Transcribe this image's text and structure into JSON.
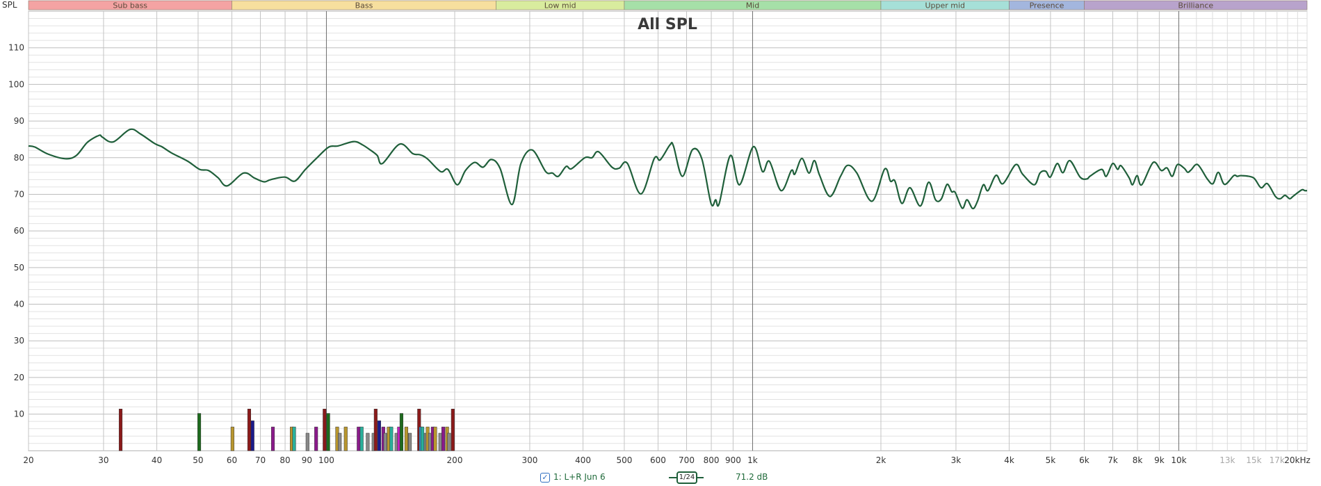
{
  "chart_data": {
    "type": "line",
    "title": "All SPL",
    "ylabel": "SPL",
    "xlabel": "",
    "x_scale": "log",
    "xlim": [
      20,
      20000
    ],
    "ylim": [
      0,
      120
    ],
    "grid": true,
    "y_ticks": [
      "10",
      "20",
      "30",
      "40",
      "50",
      "60",
      "70",
      "80",
      "90",
      "100",
      "110"
    ],
    "x_ticks": [
      {
        "f": 20,
        "label": "20"
      },
      {
        "f": 30,
        "label": "30"
      },
      {
        "f": 40,
        "label": "40"
      },
      {
        "f": 50,
        "label": "50"
      },
      {
        "f": 60,
        "label": "60"
      },
      {
        "f": 70,
        "label": "70"
      },
      {
        "f": 80,
        "label": "80"
      },
      {
        "f": 90,
        "label": "90"
      },
      {
        "f": 100,
        "label": "100"
      },
      {
        "f": 200,
        "label": "200"
      },
      {
        "f": 300,
        "label": "300"
      },
      {
        "f": 400,
        "label": "400"
      },
      {
        "f": 500,
        "label": "500"
      },
      {
        "f": 600,
        "label": "600"
      },
      {
        "f": 700,
        "label": "700"
      },
      {
        "f": 800,
        "label": "800"
      },
      {
        "f": 900,
        "label": "900"
      },
      {
        "f": 1000,
        "label": "1k"
      },
      {
        "f": 2000,
        "label": "2k"
      },
      {
        "f": 3000,
        "label": "3k"
      },
      {
        "f": 4000,
        "label": "4k"
      },
      {
        "f": 5000,
        "label": "5k"
      },
      {
        "f": 6000,
        "label": "6k"
      },
      {
        "f": 7000,
        "label": "7k"
      },
      {
        "f": 8000,
        "label": "8k"
      },
      {
        "f": 9000,
        "label": "9k"
      },
      {
        "f": 10000,
        "label": "10k"
      },
      {
        "f": 13000,
        "label": "13k",
        "dim": true
      },
      {
        "f": 15000,
        "label": "15k",
        "dim": true
      },
      {
        "f": 17000,
        "label": "17k",
        "dim": true
      },
      {
        "f": 20000,
        "label": "20kHz"
      }
    ],
    "bands": [
      {
        "label": "Sub bass",
        "from": 20,
        "to": 60,
        "color": "#f4a3a3"
      },
      {
        "label": "Bass",
        "from": 60,
        "to": 250,
        "color": "#f7df9e"
      },
      {
        "label": "Low mid",
        "from": 250,
        "to": 500,
        "color": "#d9ec9e"
      },
      {
        "label": "Mid",
        "from": 500,
        "to": 2000,
        "color": "#a6e0a8"
      },
      {
        "label": "Upper mid",
        "from": 2000,
        "to": 4000,
        "color": "#a6e0d8"
      },
      {
        "label": "Presence",
        "from": 4000,
        "to": 6000,
        "color": "#a3b6de"
      },
      {
        "label": "Brilliance",
        "from": 6000,
        "to": 20000,
        "color": "#b8a3cc"
      }
    ],
    "series": [
      {
        "name": "1: L+R Jun 6",
        "color": "#1f5f3a",
        "points": [
          [
            20,
            83.2
          ],
          [
            20.7,
            82.9
          ],
          [
            22.2,
            81
          ],
          [
            24.4,
            79.7
          ],
          [
            25.9,
            80.6
          ],
          [
            27.5,
            84.2
          ],
          [
            29.3,
            86.1
          ],
          [
            29.8,
            85.6
          ],
          [
            31.6,
            84.3
          ],
          [
            34.6,
            87.7
          ],
          [
            36.7,
            86.4
          ],
          [
            39.6,
            83.8
          ],
          [
            41.1,
            83
          ],
          [
            43.3,
            81.3
          ],
          [
            47.3,
            79
          ],
          [
            50.4,
            76.8
          ],
          [
            52.9,
            76.5
          ],
          [
            55.7,
            74.5
          ],
          [
            58.5,
            72.3
          ],
          [
            63.9,
            75.8
          ],
          [
            67.9,
            74.4
          ],
          [
            71.4,
            73.4
          ],
          [
            74,
            74
          ],
          [
            79.9,
            74.7
          ],
          [
            84.3,
            73.6
          ],
          [
            89.3,
            76.8
          ],
          [
            95.1,
            80
          ],
          [
            101.3,
            82.9
          ],
          [
            106.5,
            83.2
          ],
          [
            115.9,
            84.4
          ],
          [
            121.5,
            83.5
          ],
          [
            126.7,
            82.1
          ],
          [
            131.6,
            80.6
          ],
          [
            135.3,
            78.4
          ],
          [
            148.6,
            83.7
          ],
          [
            159.5,
            81.1
          ],
          [
            165.8,
            80.8
          ],
          [
            172.5,
            79.7
          ],
          [
            185.4,
            76.2
          ],
          [
            192.8,
            76.8
          ],
          [
            202.8,
            72.6
          ],
          [
            212,
            76.5
          ],
          [
            222.8,
            78.7
          ],
          [
            233,
            77.4
          ],
          [
            243.6,
            79.5
          ],
          [
            255.5,
            77.1
          ],
          [
            272.6,
            67.2
          ],
          [
            286,
            78.4
          ],
          [
            304,
            82.1
          ],
          [
            327,
            76.2
          ],
          [
            339,
            75.8
          ],
          [
            350,
            74.9
          ],
          [
            365,
            77.6
          ],
          [
            376,
            77
          ],
          [
            404,
            80
          ],
          [
            420,
            80
          ],
          [
            435,
            81.6
          ],
          [
            468,
            77.4
          ],
          [
            486,
            77.1
          ],
          [
            508,
            78.5
          ],
          [
            547,
            70.1
          ],
          [
            588,
            79.8
          ],
          [
            607,
            79.4
          ],
          [
            640,
            83.5
          ],
          [
            652,
            83.2
          ],
          [
            684,
            74.9
          ],
          [
            723,
            82.2
          ],
          [
            760,
            79.7
          ],
          [
            799,
            67.5
          ],
          [
            819,
            68.5
          ],
          [
            835,
            67.5
          ],
          [
            887,
            80.6
          ],
          [
            932,
            72.6
          ],
          [
            1004,
            83
          ],
          [
            1055,
            76.2
          ],
          [
            1095,
            79
          ],
          [
            1166,
            71
          ],
          [
            1233,
            76.5
          ],
          [
            1256,
            75.5
          ],
          [
            1305,
            79.8
          ],
          [
            1356,
            75.8
          ],
          [
            1396,
            79.2
          ],
          [
            1436,
            75.2
          ],
          [
            1519,
            69.4
          ],
          [
            1608,
            74.9
          ],
          [
            1671,
            77.9
          ],
          [
            1756,
            75.8
          ],
          [
            1905,
            68.1
          ],
          [
            2041,
            76.9
          ],
          [
            2106,
            73.6
          ],
          [
            2158,
            73.6
          ],
          [
            2240,
            67.5
          ],
          [
            2340,
            71.8
          ],
          [
            2475,
            66.8
          ],
          [
            2588,
            73.3
          ],
          [
            2687,
            68.5
          ],
          [
            2771,
            68.7
          ],
          [
            2859,
            72.7
          ],
          [
            2932,
            70.7
          ],
          [
            2988,
            70.5
          ],
          [
            3104,
            66.2
          ],
          [
            3184,
            68.5
          ],
          [
            3286,
            66.1
          ],
          [
            3370,
            68.1
          ],
          [
            3478,
            72.6
          ],
          [
            3567,
            71
          ],
          [
            3726,
            75.2
          ],
          [
            3868,
            72.9
          ],
          [
            4143,
            78.1
          ],
          [
            4301,
            75.5
          ],
          [
            4579,
            72.6
          ],
          [
            4724,
            75.8
          ],
          [
            4873,
            76.3
          ],
          [
            4996,
            74.7
          ],
          [
            5185,
            78.4
          ],
          [
            5347,
            75.9
          ],
          [
            5549,
            79.2
          ],
          [
            5866,
            74.7
          ],
          [
            6087,
            74.2
          ],
          [
            6200,
            75
          ],
          [
            6592,
            76.8
          ],
          [
            6756,
            74.9
          ],
          [
            6994,
            78.4
          ],
          [
            7186,
            76.8
          ],
          [
            7320,
            77.8
          ],
          [
            7645,
            74.5
          ],
          [
            7788,
            72.6
          ],
          [
            7983,
            75.1
          ],
          [
            8183,
            72.6
          ],
          [
            8708,
            78.7
          ],
          [
            9095,
            76.5
          ],
          [
            9383,
            77.2
          ],
          [
            9653,
            74.9
          ],
          [
            9921,
            78.1
          ],
          [
            10300,
            77.1
          ],
          [
            10495,
            76
          ],
          [
            10694,
            76.7
          ],
          [
            11075,
            78.1
          ],
          [
            11663,
            74.2
          ],
          [
            12029,
            72.9
          ],
          [
            12380,
            76
          ],
          [
            12804,
            72.7
          ],
          [
            13460,
            75.1
          ],
          [
            13716,
            74.9
          ],
          [
            14067,
            75.1
          ],
          [
            14970,
            74.5
          ],
          [
            15590,
            71.8
          ],
          [
            16140,
            72.9
          ],
          [
            16860,
            69.4
          ],
          [
            17300,
            68.8
          ],
          [
            17750,
            69.7
          ],
          [
            18210,
            68.8
          ],
          [
            18560,
            69.5
          ],
          [
            19420,
            71.2
          ],
          [
            19750,
            71
          ],
          [
            20000,
            71
          ]
        ]
      }
    ],
    "mode_markers": [
      {
        "f": 32.9,
        "db": 11.4,
        "color": "#8b1a1a"
      },
      {
        "f": 50.3,
        "db": 10.2,
        "color": "#1e6b1e"
      },
      {
        "f": 60.2,
        "db": 6.5,
        "color": "#b8962e"
      },
      {
        "f": 65.9,
        "db": 11.4,
        "color": "#8b1a1a"
      },
      {
        "f": 67.1,
        "db": 8.2,
        "color": "#1a1a8b"
      },
      {
        "f": 74.9,
        "db": 6.5,
        "color": "#8b1a8b"
      },
      {
        "f": 82.9,
        "db": 6.5,
        "color": "#b8962e"
      },
      {
        "f": 84,
        "db": 6.5,
        "color": "#2aaf9a"
      },
      {
        "f": 90.3,
        "db": 4.8,
        "color": "#888888"
      },
      {
        "f": 94.6,
        "db": 6.5,
        "color": "#8b1a8b"
      },
      {
        "f": 99,
        "db": 11.4,
        "color": "#8b1a1a"
      },
      {
        "f": 101,
        "db": 10.2,
        "color": "#1e6b1e"
      },
      {
        "f": 106,
        "db": 6.5,
        "color": "#b8962e"
      },
      {
        "f": 107.5,
        "db": 4.8,
        "color": "#888888"
      },
      {
        "f": 111,
        "db": 6.5,
        "color": "#b8962e"
      },
      {
        "f": 119,
        "db": 6.5,
        "color": "#8b1a8b"
      },
      {
        "f": 121,
        "db": 6.5,
        "color": "#2aaf9a"
      },
      {
        "f": 125,
        "db": 4.8,
        "color": "#888888"
      },
      {
        "f": 129,
        "db": 4.8,
        "color": "#888888"
      },
      {
        "f": 130.5,
        "db": 11.4,
        "color": "#8b1a1a"
      },
      {
        "f": 133,
        "db": 8.2,
        "color": "#1a1a8b"
      },
      {
        "f": 136,
        "db": 6.5,
        "color": "#8b1a8b"
      },
      {
        "f": 137.5,
        "db": 4.8,
        "color": "#888888"
      },
      {
        "f": 140,
        "db": 6.5,
        "color": "#b8962e"
      },
      {
        "f": 142,
        "db": 6.5,
        "color": "#2aaf9a"
      },
      {
        "f": 146,
        "db": 4.8,
        "color": "#888888"
      },
      {
        "f": 148,
        "db": 6.5,
        "color": "#c020c0"
      },
      {
        "f": 150,
        "db": 10.2,
        "color": "#1e6b1e"
      },
      {
        "f": 154,
        "db": 6.5,
        "color": "#b8962e"
      },
      {
        "f": 157,
        "db": 4.8,
        "color": "#888888"
      },
      {
        "f": 165,
        "db": 11.4,
        "color": "#8b1a1a"
      },
      {
        "f": 166.5,
        "db": 6.5,
        "color": "#3090d0"
      },
      {
        "f": 168,
        "db": 6.5,
        "color": "#2aaf9a"
      },
      {
        "f": 171,
        "db": 4.8,
        "color": "#888888"
      },
      {
        "f": 172.8,
        "db": 6.5,
        "color": "#b8962e"
      },
      {
        "f": 175,
        "db": 4.8,
        "color": "#888888"
      },
      {
        "f": 177.6,
        "db": 6.5,
        "color": "#8b1a8b"
      },
      {
        "f": 180,
        "db": 6.5,
        "color": "#b8962e"
      },
      {
        "f": 185,
        "db": 4.8,
        "color": "#888888"
      },
      {
        "f": 188,
        "db": 6.5,
        "color": "#8b1a8b"
      },
      {
        "f": 192,
        "db": 6.5,
        "color": "#b8962e"
      },
      {
        "f": 194,
        "db": 4.8,
        "color": "#888888"
      },
      {
        "f": 198,
        "db": 11.4,
        "color": "#8b1a1a"
      }
    ]
  },
  "legend": {
    "checked": true,
    "series_label": "1: L+R Jun 6",
    "smoothing": "1/24",
    "value_readout": "71.2 dB"
  }
}
